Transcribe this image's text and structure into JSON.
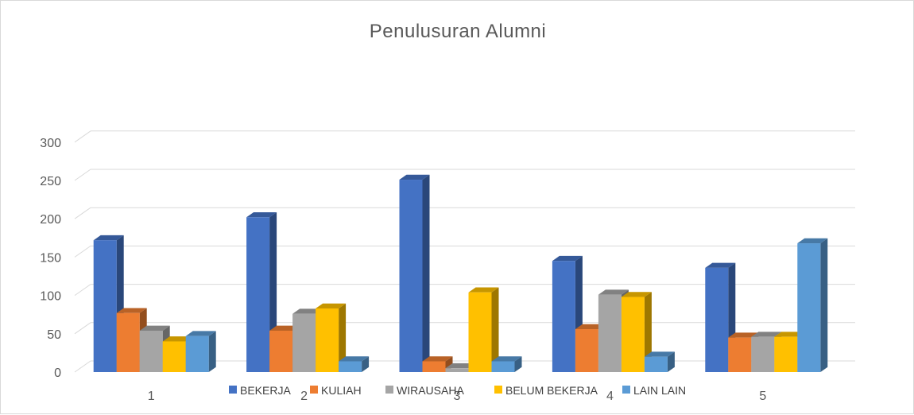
{
  "chart_data": {
    "type": "bar",
    "title": "Penulusuran  Alumni",
    "categories": [
      "1",
      "2",
      "3",
      "4",
      "5"
    ],
    "series": [
      {
        "name": "BEKERJA",
        "color": "#4472c4",
        "values": [
          172,
          202,
          251,
          145,
          136
        ]
      },
      {
        "name": "KULIAH",
        "color": "#ed7d31",
        "values": [
          77,
          54,
          14,
          56,
          45
        ]
      },
      {
        "name": "WIRAUSAHA",
        "color": "#a5a5a5",
        "values": [
          54,
          76,
          5,
          101,
          46
        ]
      },
      {
        "name": "BELUM BEKERJA",
        "color": "#ffc000",
        "values": [
          40,
          83,
          104,
          98,
          46
        ]
      },
      {
        "name": "LAIN LAIN",
        "color": "#5b9bd5",
        "values": [
          47,
          14,
          14,
          20,
          168
        ]
      }
    ],
    "ylim": [
      0,
      300
    ],
    "yticks": [
      0,
      50,
      100,
      150,
      200,
      250,
      300
    ],
    "grid": true,
    "legend": "bottom",
    "style": "3d-clustered-column"
  }
}
